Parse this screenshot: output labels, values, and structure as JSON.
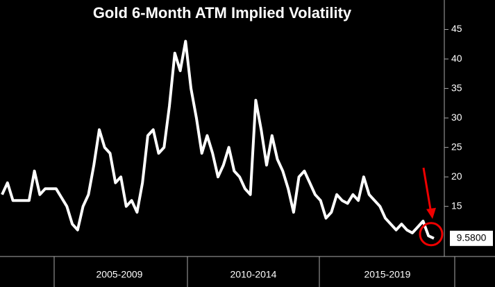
{
  "chart_data": {
    "type": "line",
    "title": "Gold 6-Month ATM Implied Volatility",
    "periods": [
      "2005-2009",
      "2010-2014",
      "2015-2019"
    ],
    "series": [
      {
        "name": "Gold 6-Month ATM Implied Volatility",
        "color": "#ffffff",
        "values": [
          17,
          19,
          16,
          16,
          16,
          16,
          21,
          17,
          18,
          18,
          18,
          16.5,
          15,
          12,
          11,
          15,
          17,
          22,
          28,
          25,
          24,
          19,
          20,
          15,
          16,
          14,
          19,
          27,
          28,
          24,
          25,
          32,
          41,
          38,
          43,
          35,
          30,
          24,
          27,
          24,
          20,
          22,
          25,
          21,
          20,
          18,
          17,
          33,
          28,
          22,
          27,
          23,
          21,
          18,
          14,
          20,
          21,
          19,
          17,
          16,
          13,
          14,
          17,
          16,
          15.5,
          17,
          16,
          20,
          17,
          16,
          15,
          13,
          12,
          11,
          12,
          11,
          10.5,
          11.5,
          12.5,
          10,
          9.58
        ],
        "value_labels": {
          "80": "9.5800"
        }
      }
    ],
    "ylim": [
      6.5,
      50
    ],
    "yticks": [
      15,
      20,
      25,
      30,
      35,
      40,
      45
    ]
  }
}
